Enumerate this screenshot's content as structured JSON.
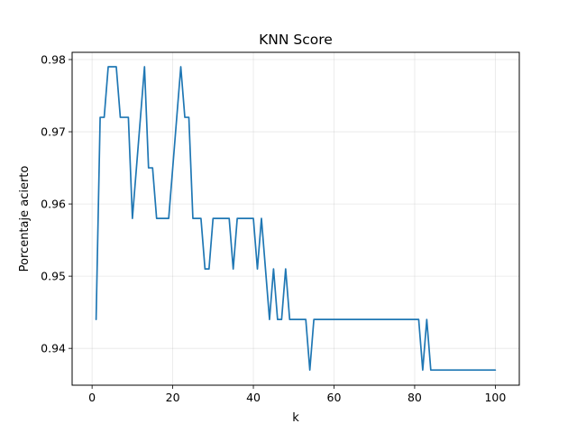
{
  "chart_data": {
    "type": "line",
    "title": "KNN Score",
    "xlabel": "k",
    "ylabel": "Porcentaje acierto",
    "xlim": [
      -4.95,
      105.95
    ],
    "ylim": [
      0.9349,
      0.981
    ],
    "xticks": [
      0,
      20,
      40,
      60,
      80,
      100
    ],
    "xtick_labels": [
      "0",
      "20",
      "40",
      "60",
      "80",
      "100"
    ],
    "yticks": [
      0.94,
      0.95,
      0.96,
      0.97,
      0.98
    ],
    "ytick_labels": [
      "0.94",
      "0.95",
      "0.96",
      "0.97",
      "0.98"
    ],
    "grid": true,
    "series": [
      {
        "color": "#1f77b4",
        "x": [
          1,
          2,
          3,
          4,
          5,
          6,
          7,
          8,
          9,
          10,
          11,
          12,
          13,
          14,
          15,
          16,
          17,
          18,
          19,
          20,
          21,
          22,
          23,
          24,
          25,
          26,
          27,
          28,
          29,
          30,
          31,
          32,
          33,
          34,
          35,
          36,
          37,
          38,
          39,
          40,
          41,
          42,
          43,
          44,
          45,
          46,
          47,
          48,
          49,
          50,
          51,
          52,
          53,
          54,
          55,
          56,
          57,
          58,
          59,
          60,
          61,
          62,
          63,
          64,
          65,
          66,
          67,
          68,
          69,
          70,
          71,
          72,
          73,
          74,
          75,
          76,
          77,
          78,
          79,
          80,
          81,
          82,
          83,
          84,
          85,
          86,
          87,
          88,
          89,
          90,
          91,
          92,
          93,
          94,
          95,
          96,
          97,
          98,
          99,
          100
        ],
        "y": [
          0.944,
          0.972,
          0.972,
          0.979,
          0.979,
          0.979,
          0.972,
          0.972,
          0.972,
          0.958,
          0.965,
          0.972,
          0.979,
          0.965,
          0.965,
          0.958,
          0.958,
          0.958,
          0.958,
          0.965,
          0.972,
          0.979,
          0.972,
          0.972,
          0.958,
          0.958,
          0.958,
          0.951,
          0.951,
          0.958,
          0.958,
          0.958,
          0.958,
          0.958,
          0.951,
          0.958,
          0.958,
          0.958,
          0.958,
          0.958,
          0.951,
          0.958,
          0.951,
          0.944,
          0.951,
          0.944,
          0.944,
          0.951,
          0.944,
          0.944,
          0.944,
          0.944,
          0.944,
          0.937,
          0.944,
          0.944,
          0.944,
          0.944,
          0.944,
          0.944,
          0.944,
          0.944,
          0.944,
          0.944,
          0.944,
          0.944,
          0.944,
          0.944,
          0.944,
          0.944,
          0.944,
          0.944,
          0.944,
          0.944,
          0.944,
          0.944,
          0.944,
          0.944,
          0.944,
          0.944,
          0.944,
          0.937,
          0.944,
          0.937,
          0.937,
          0.937,
          0.937,
          0.937,
          0.937,
          0.937,
          0.937,
          0.937,
          0.937,
          0.937,
          0.937,
          0.937,
          0.937,
          0.937,
          0.937,
          0.937
        ]
      }
    ]
  }
}
